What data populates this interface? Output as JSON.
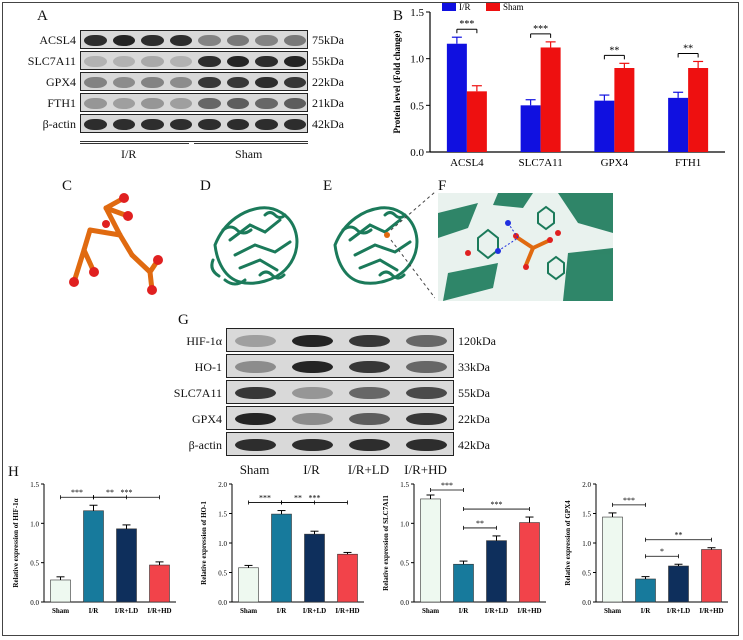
{
  "panels": {
    "A": "A",
    "B": "B",
    "C": "C",
    "D": "D",
    "E": "E",
    "F": "F",
    "G": "G",
    "H": "H"
  },
  "blotA": {
    "rows": [
      {
        "label": "ACSL4",
        "kda": "75kDa",
        "ir": [
          0.9,
          0.95,
          0.9,
          0.9
        ],
        "sham": [
          0.45,
          0.5,
          0.45,
          0.5
        ]
      },
      {
        "label": "SLC7A11",
        "kda": "55kDa",
        "ir": [
          0.2,
          0.2,
          0.25,
          0.2
        ],
        "sham": [
          0.9,
          0.95,
          0.9,
          0.95
        ]
      },
      {
        "label": "GPX4",
        "kda": "22kDa",
        "ir": [
          0.45,
          0.4,
          0.45,
          0.4
        ],
        "sham": [
          0.85,
          0.85,
          0.9,
          0.85
        ]
      },
      {
        "label": "FTH1",
        "kda": "21kDa",
        "ir": [
          0.35,
          0.3,
          0.35,
          0.3
        ],
        "sham": [
          0.6,
          0.65,
          0.6,
          0.65
        ]
      },
      {
        "label": "β-actin",
        "kda": "42kDa",
        "ir": [
          0.9,
          0.9,
          0.9,
          0.9
        ],
        "sham": [
          0.9,
          0.9,
          0.9,
          0.9
        ]
      }
    ],
    "groups": [
      "I/R",
      "Sham"
    ]
  },
  "blotG": {
    "rows": [
      {
        "label": "HIF-1α",
        "kda": "120kDa",
        "lanes": [
          0.3,
          0.95,
          0.85,
          0.6
        ]
      },
      {
        "label": "HO-1",
        "kda": "33kDa",
        "lanes": [
          0.4,
          0.95,
          0.85,
          0.6
        ]
      },
      {
        "label": "SLC7A11",
        "kda": "55kDa",
        "lanes": [
          0.85,
          0.35,
          0.6,
          0.75
        ]
      },
      {
        "label": "GPX4",
        "kda": "22kDa",
        "lanes": [
          0.95,
          0.4,
          0.65,
          0.85
        ]
      },
      {
        "label": "β-actin",
        "kda": "42kDa",
        "lanes": [
          0.9,
          0.9,
          0.9,
          0.9
        ]
      }
    ],
    "lanes": [
      "Sham",
      "I/R",
      "I/R+LD",
      "I/R+HD"
    ]
  },
  "colors": {
    "ir": "#1010e0",
    "sham": "#ee1010",
    "protein": "#1b7a5a",
    "ligand": "#e06a10",
    "oxygen": "#e02020"
  },
  "chart_data": [
    {
      "type": "bar",
      "ylabel": "Protein level (Fold change)",
      "categories": [
        "ACSL4",
        "SLC7A11",
        "GPX4",
        "FTH1"
      ],
      "ylim": [
        0,
        1.5
      ],
      "yticks": [
        "0.0",
        "0.5",
        "1.0",
        "1.5"
      ],
      "legend_position": "top-left",
      "series": [
        {
          "name": "I/R",
          "values": [
            1.16,
            0.5,
            0.55,
            0.58
          ],
          "errors": [
            0.07,
            0.06,
            0.06,
            0.06
          ]
        },
        {
          "name": "Sham",
          "values": [
            0.65,
            1.12,
            0.9,
            0.9
          ],
          "errors": [
            0.06,
            0.06,
            0.05,
            0.07
          ]
        }
      ],
      "significance": [
        "***",
        "***",
        "**",
        "**"
      ]
    },
    {
      "type": "bar",
      "ylabel": "Relative expression of HIF-1α",
      "categories": [
        "Sham",
        "I/R",
        "I/R+LD",
        "I/R+HD"
      ],
      "values": [
        0.28,
        1.16,
        0.93,
        0.47
      ],
      "errors": [
        0.04,
        0.07,
        0.05,
        0.04
      ],
      "ylim": [
        0,
        1.5
      ],
      "yticks": [
        "0.0",
        "0.5",
        "1.0",
        "1.5"
      ],
      "sig": [
        {
          "a": 0,
          "b": 1,
          "t": "***"
        },
        {
          "a": 1,
          "b": 2,
          "t": "**"
        },
        {
          "a": 1,
          "b": 3,
          "t": "***"
        }
      ]
    },
    {
      "type": "bar",
      "ylabel": "Relative expression of HO-1",
      "categories": [
        "Sham",
        "I/R",
        "I/R+LD",
        "I/R+HD"
      ],
      "values": [
        0.58,
        1.49,
        1.15,
        0.81
      ],
      "errors": [
        0.04,
        0.06,
        0.05,
        0.03
      ],
      "ylim": [
        0,
        2.0
      ],
      "yticks": [
        "0.0",
        "0.5",
        "1.0",
        "1.5",
        "2.0"
      ],
      "sig": [
        {
          "a": 0,
          "b": 1,
          "t": "***"
        },
        {
          "a": 1,
          "b": 2,
          "t": "**"
        },
        {
          "a": 1,
          "b": 3,
          "t": "***"
        }
      ]
    },
    {
      "type": "bar",
      "ylabel": "Relative expression of SLC7A11",
      "categories": [
        "Sham",
        "I/R",
        "I/R+LD",
        "I/R+HD"
      ],
      "values": [
        1.31,
        0.48,
        0.78,
        1.01
      ],
      "errors": [
        0.05,
        0.04,
        0.06,
        0.07
      ],
      "ylim": [
        0,
        1.5
      ],
      "yticks": [
        "0.0",
        "0.5",
        "1.0",
        "1.5"
      ],
      "sig": [
        {
          "a": 0,
          "b": 1,
          "t": "***"
        },
        {
          "a": 1,
          "b": 2,
          "t": "**"
        },
        {
          "a": 1,
          "b": 3,
          "t": "***"
        }
      ]
    },
    {
      "type": "bar",
      "ylabel": "Relative expression of GPX4",
      "categories": [
        "Sham",
        "I/R",
        "I/R+LD",
        "I/R+HD"
      ],
      "values": [
        1.44,
        0.39,
        0.61,
        0.89
      ],
      "errors": [
        0.07,
        0.04,
        0.03,
        0.03
      ],
      "ylim": [
        0,
        2.0
      ],
      "yticks": [
        "0.0",
        "0.5",
        "1.0",
        "1.5",
        "2.0"
      ],
      "sig": [
        {
          "a": 0,
          "b": 1,
          "t": "***"
        },
        {
          "a": 1,
          "b": 2,
          "t": "*"
        },
        {
          "a": 1,
          "b": 3,
          "t": "**"
        }
      ]
    }
  ],
  "h_colors": [
    "#eef9f0",
    "#177a9c",
    "#0e2f5c",
    "#f2434a"
  ]
}
